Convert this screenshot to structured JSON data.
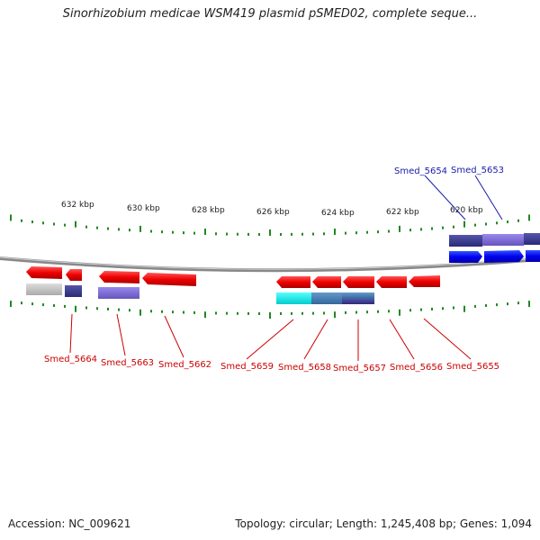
{
  "title": "Sinorhizobium medicae WSM419 plasmid pSMED02, complete seque...",
  "accession": "Accession: NC_009621",
  "summary": "Topology: circular; Length: 1,245,408 bp; Genes: 1,094",
  "scale_labels": [
    {
      "id": "632",
      "text": "632 kbp"
    },
    {
      "id": "630",
      "text": "630 kbp"
    },
    {
      "id": "628",
      "text": "628 kbp"
    },
    {
      "id": "626",
      "text": "626 kbp"
    },
    {
      "id": "624",
      "text": "624 kbp"
    },
    {
      "id": "622",
      "text": "622 kbp"
    },
    {
      "id": "620",
      "text": "620 kbp"
    }
  ],
  "genes_forward": [
    {
      "id": "5654",
      "label": "Smed_5654"
    },
    {
      "id": "5653",
      "label": "Smed_5653"
    }
  ],
  "genes_reverse": [
    {
      "id": "5664",
      "label": "Smed_5664"
    },
    {
      "id": "5663",
      "label": "Smed_5663"
    },
    {
      "id": "5662",
      "label": "Smed_5662"
    },
    {
      "id": "5659",
      "label": "Smed_5659"
    },
    {
      "id": "5658",
      "label": "Smed_5658"
    },
    {
      "id": "5657",
      "label": "Smed_5657"
    },
    {
      "id": "5656",
      "label": "Smed_5656"
    },
    {
      "id": "5655",
      "label": "Smed_5655"
    }
  ],
  "colors": {
    "reverse_gene": "#ee0000",
    "forward_gene": "#0000ee",
    "backbone": "#888888",
    "ticks": "#228822",
    "label_reverse": "#cc0000",
    "label_forward": "#1a1aaa"
  }
}
